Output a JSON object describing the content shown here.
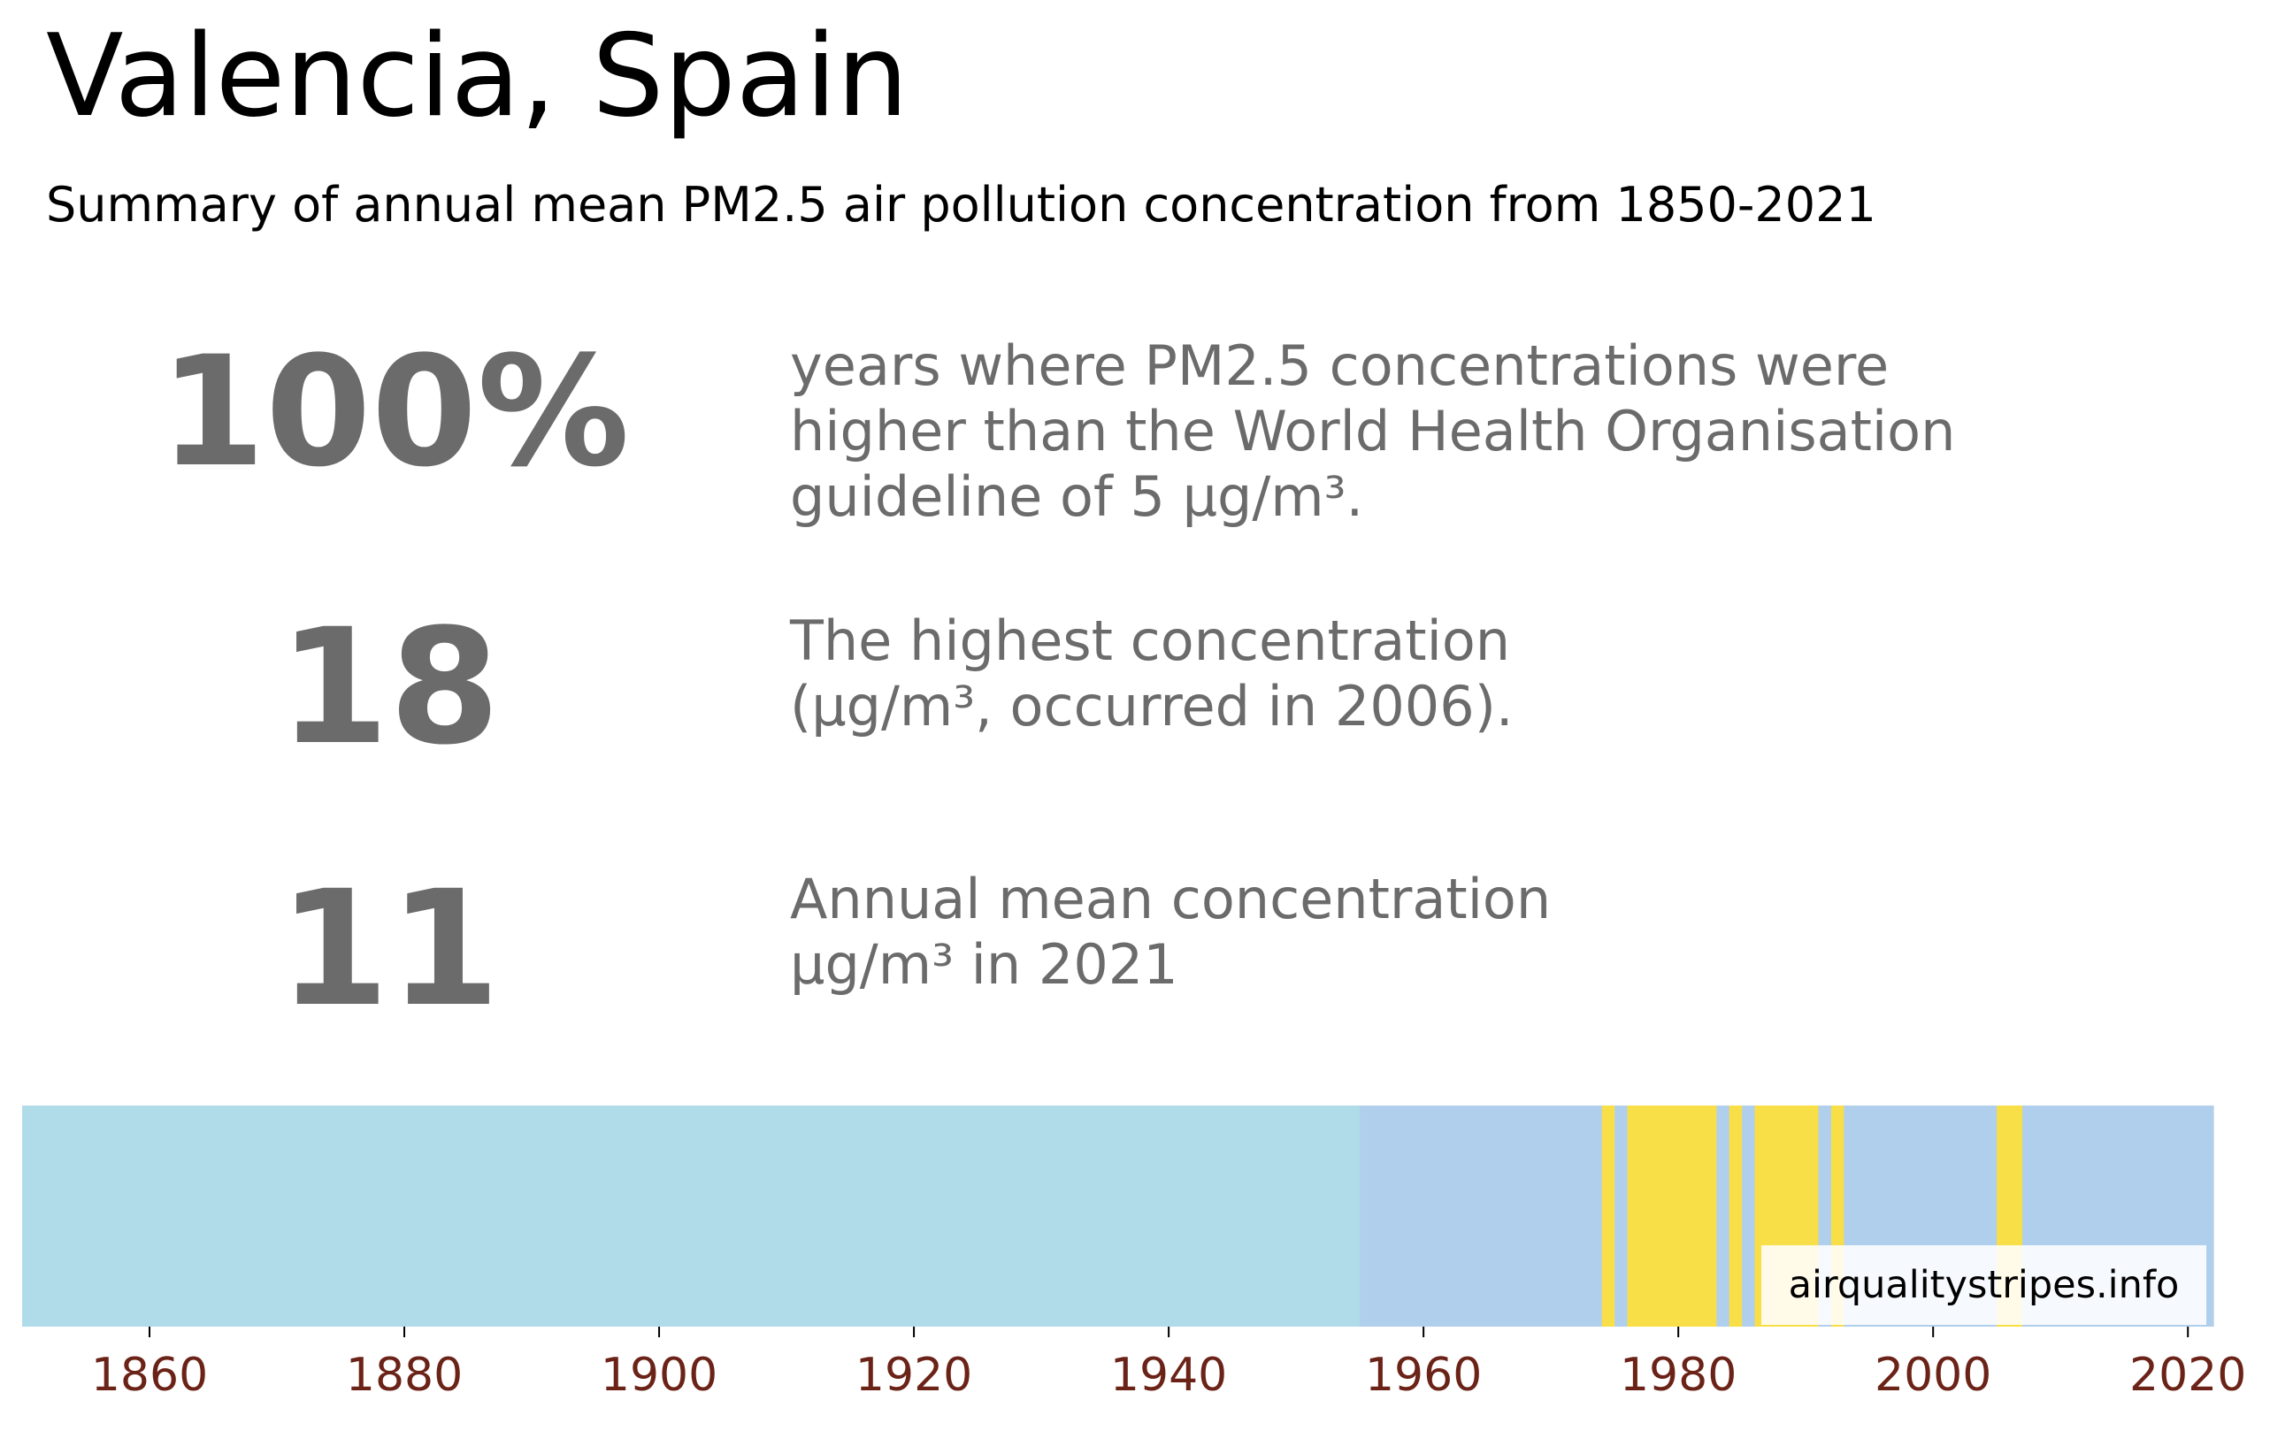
{
  "title": "Valencia, Spain",
  "subtitle": "Summary of annual mean PM2.5 air pollution concentration from 1850-2021",
  "stats": [
    {
      "value": "100%",
      "lines": [
        "years where PM2.5 concentrations were",
        "higher than the World Health Organisation",
        "guideline of 5 µg/m³."
      ]
    },
    {
      "value": "18",
      "lines": [
        "The highest concentration",
        "(µg/m³, occurred in 2006)."
      ]
    },
    {
      "value": "11",
      "lines": [
        "Annual mean concentration",
        "µg/m³ in 2021"
      ]
    }
  ],
  "watermark": "airqualitystripes.info",
  "colors": {
    "light_blue": "#b0dbe9",
    "blue": "#b0cfec",
    "yellow": "#f8df47",
    "tick_label": "#6b2318",
    "stat_text": "#6b6b6b"
  },
  "chart_data": {
    "type": "heatmap",
    "title": "",
    "xlabel": "",
    "ylabel": "",
    "xlim": [
      1850,
      2022
    ],
    "x_ticks": [
      1860,
      1880,
      1900,
      1920,
      1940,
      1960,
      1980,
      2000,
      2020
    ],
    "bands": [
      {
        "start": 1850,
        "end": 1955,
        "color": "#b0dbe9"
      },
      {
        "start": 1955,
        "end": 1974,
        "color": "#b0cfec"
      },
      {
        "start": 1974,
        "end": 1975,
        "color": "#f8df47"
      },
      {
        "start": 1975,
        "end": 1976,
        "color": "#b0cfec"
      },
      {
        "start": 1976,
        "end": 1983,
        "color": "#f8df47"
      },
      {
        "start": 1983,
        "end": 1984,
        "color": "#b0cfec"
      },
      {
        "start": 1984,
        "end": 1985,
        "color": "#f8df47"
      },
      {
        "start": 1985,
        "end": 1986,
        "color": "#b0cfec"
      },
      {
        "start": 1986,
        "end": 1991,
        "color": "#f8df47"
      },
      {
        "start": 1991,
        "end": 1992,
        "color": "#b0cfec"
      },
      {
        "start": 1992,
        "end": 1993,
        "color": "#f8df47"
      },
      {
        "start": 1993,
        "end": 2005,
        "color": "#b0cfec"
      },
      {
        "start": 2005,
        "end": 2007,
        "color": "#f8df47"
      },
      {
        "start": 2007,
        "end": 2022,
        "color": "#b0cfec"
      }
    ]
  }
}
